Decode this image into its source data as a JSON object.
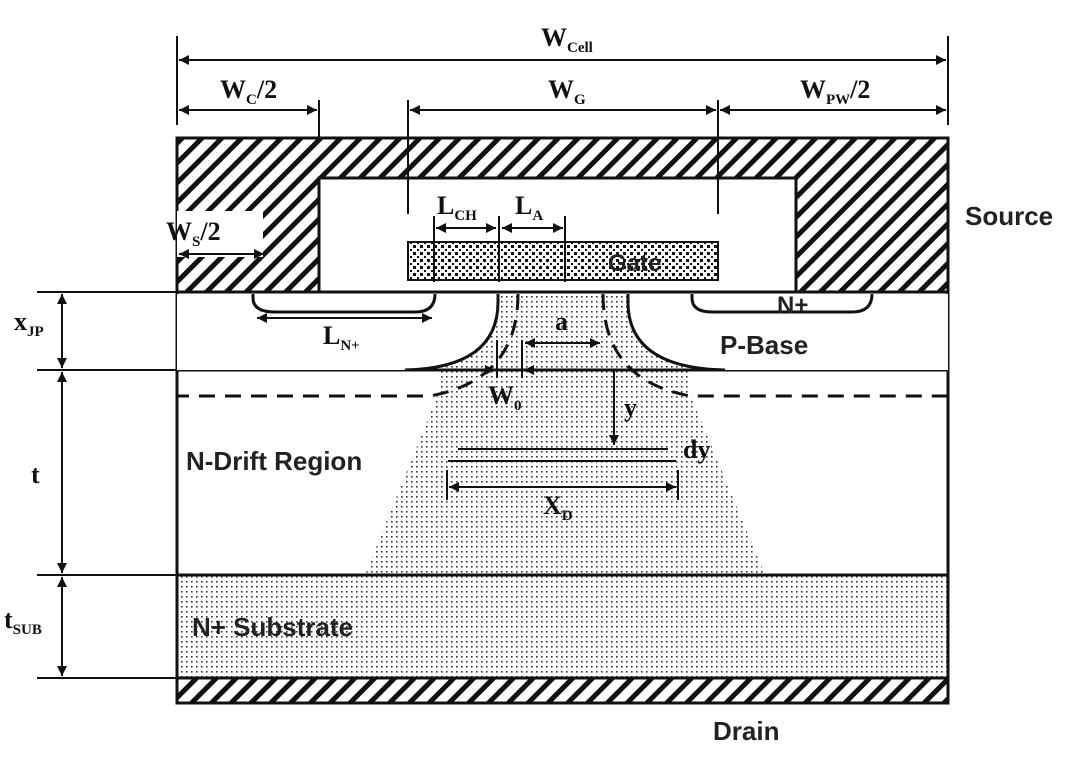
{
  "labels": {
    "w_cell": {
      "main": "W",
      "sub": "Cell"
    },
    "w_c": {
      "main": "W",
      "sub": "C",
      "tail": "/2"
    },
    "w_g": {
      "main": "W",
      "sub": "G"
    },
    "w_pw": {
      "main": "W",
      "sub": "PW",
      "tail": "/2"
    },
    "w_s": {
      "main": "W",
      "sub": "S",
      "tail": "/2"
    },
    "l_ch": {
      "main": "L",
      "sub": "CH"
    },
    "l_a": {
      "main": "L",
      "sub": "A"
    },
    "gate": "Gate",
    "source": "Source",
    "x_jp": {
      "main": "x",
      "sub": "JP"
    },
    "l_n": {
      "main": "L",
      "sub": "N+"
    },
    "n_plus": "N+",
    "p_base": "P-Base",
    "a": "a",
    "w0": {
      "main": "W",
      "sub": "0"
    },
    "y": "y",
    "dy": "dy",
    "t": "t",
    "n_drift": "N-Drift Region",
    "x_d": {
      "main": "X",
      "sub": "D"
    },
    "t_sub": {
      "main": "t",
      "sub": "SUB"
    },
    "n_substrate": "N+ Substrate",
    "drain": "Drain"
  },
  "colors": {
    "line": "#111111",
    "text": "#222222",
    "dots": "#333333",
    "background": "#ffffff"
  }
}
